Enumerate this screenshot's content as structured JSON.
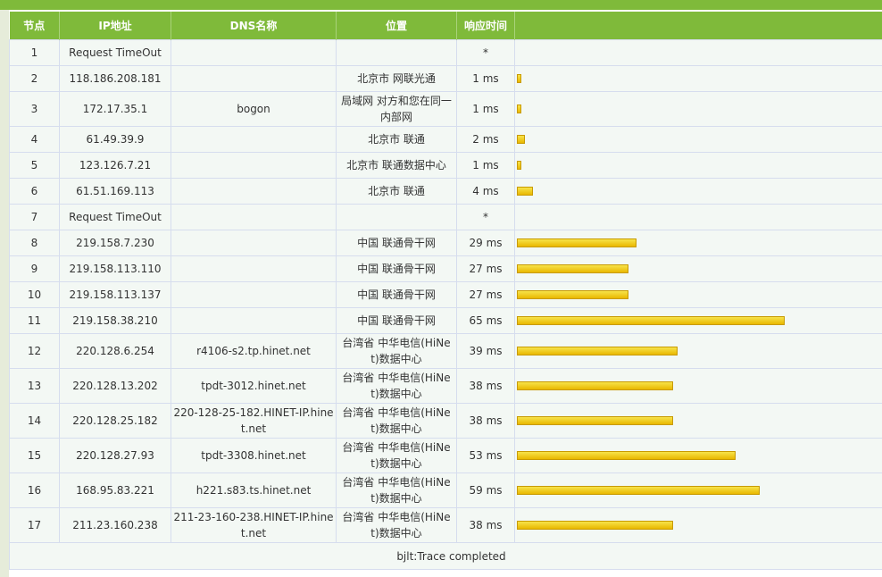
{
  "header": {
    "cols": [
      "节点",
      "IP地址",
      "DNS名称",
      "位置",
      "响应时间",
      ""
    ]
  },
  "colors": {
    "header_green": "#7fba3a",
    "row_bg": "#f3f8f4",
    "bar_yellow": "#f2c81a",
    "link_blue": "#0000cc"
  },
  "max_ms": 65,
  "rows": [
    {
      "hop": "1",
      "ip": "Request TimeOut",
      "dns": "",
      "loc": "",
      "time": "*",
      "ms": 0
    },
    {
      "hop": "2",
      "ip": "118.186.208.181",
      "dns": "",
      "loc": "北京市 网联光通",
      "time": "1 ms",
      "ms": 1
    },
    {
      "hop": "3",
      "ip": "172.17.35.1",
      "dns": "bogon",
      "loc": "局域网 对方和您在同一内部网",
      "time": "1 ms",
      "ms": 1
    },
    {
      "hop": "4",
      "ip": "61.49.39.9",
      "dns": "",
      "loc": "北京市 联通",
      "time": "2 ms",
      "ms": 2
    },
    {
      "hop": "5",
      "ip": "123.126.7.21",
      "dns": "",
      "loc": "北京市 联通数据中心",
      "time": "1 ms",
      "ms": 1
    },
    {
      "hop": "6",
      "ip": "61.51.169.113",
      "dns": "",
      "loc": "北京市 联通",
      "time": "4 ms",
      "ms": 4
    },
    {
      "hop": "7",
      "ip": "Request TimeOut",
      "dns": "",
      "loc": "",
      "time": "*",
      "ms": 0
    },
    {
      "hop": "8",
      "ip": "219.158.7.230",
      "dns": "",
      "loc": "中国 联通骨干网",
      "time": "29 ms",
      "ms": 29
    },
    {
      "hop": "9",
      "ip": "219.158.113.110",
      "dns": "",
      "loc": "中国 联通骨干网",
      "time": "27 ms",
      "ms": 27
    },
    {
      "hop": "10",
      "ip": "219.158.113.137",
      "dns": "",
      "loc": "中国 联通骨干网",
      "time": "27 ms",
      "ms": 27
    },
    {
      "hop": "11",
      "ip": "219.158.38.210",
      "dns": "",
      "loc": "中国 联通骨干网",
      "time": "65 ms",
      "ms": 65
    },
    {
      "hop": "12",
      "ip": "220.128.6.254",
      "dns": "r4106-s2.tp.hinet.net",
      "loc": "台湾省 中华电信(HiNet)数据中心",
      "time": "39 ms",
      "ms": 39
    },
    {
      "hop": "13",
      "ip": "220.128.13.202",
      "dns": "tpdt-3012.hinet.net",
      "loc": "台湾省 中华电信(HiNet)数据中心",
      "time": "38 ms",
      "ms": 38
    },
    {
      "hop": "14",
      "ip": "220.128.25.182",
      "dns": "220-128-25-182.HINET-IP.hinet.net",
      "loc": "台湾省 中华电信(HiNet)数据中心",
      "time": "38 ms",
      "ms": 38
    },
    {
      "hop": "15",
      "ip": "220.128.27.93",
      "dns": "tpdt-3308.hinet.net",
      "loc": "台湾省 中华电信(HiNet)数据中心",
      "time": "53 ms",
      "ms": 53
    },
    {
      "hop": "16",
      "ip": "168.95.83.221",
      "dns": "h221.s83.ts.hinet.net",
      "loc": "台湾省 中华电信(HiNet)数据中心",
      "time": "59 ms",
      "ms": 59
    },
    {
      "hop": "17",
      "ip": "211.23.160.238",
      "dns": "211-23-160-238.HINET-IP.hinet.net",
      "loc": "台湾省 中华电信(HiNet)数据中心",
      "time": "38 ms",
      "ms": 38
    }
  ],
  "footer": "bjlt:Trace completed"
}
